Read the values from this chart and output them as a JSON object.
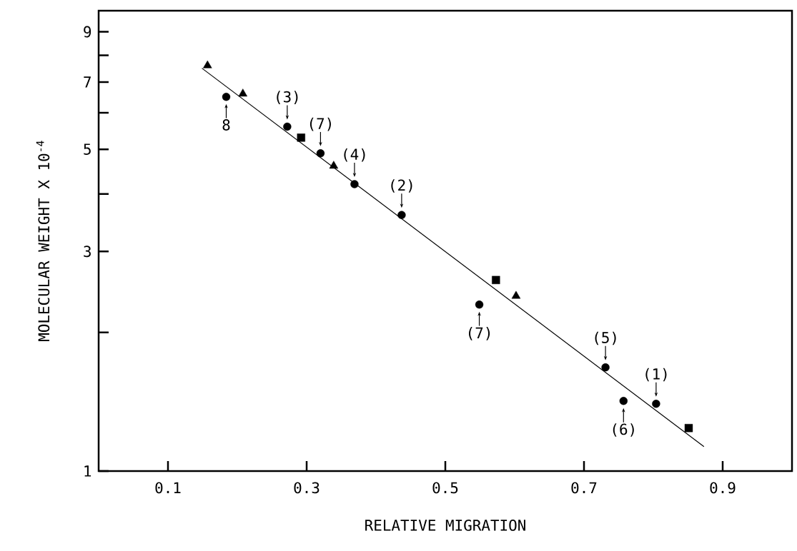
{
  "chart_data": {
    "type": "scatter",
    "xlabel": "RELATIVE MIGRATION",
    "ylabel": "MOLECULAR WEIGHT X 10$^{-4}$",
    "xlim": [
      0,
      1.0
    ],
    "ylim": [
      1,
      10
    ],
    "log": "y",
    "xticks": [
      0.1,
      0.3,
      0.5,
      0.7,
      0.9
    ],
    "yticks": [
      1,
      {
        "value": 2,
        "label": null
      },
      3,
      {
        "value": 4,
        "label": null
      },
      5,
      {
        "value": 6,
        "label": null
      },
      7,
      {
        "value": 8,
        "label": null
      },
      9
    ],
    "series": [
      {
        "marker": "circle",
        "color": "#000000",
        "x": [
          0.184,
          0.272,
          0.32,
          0.369,
          0.437,
          0.549,
          0.731,
          0.757,
          0.804
        ],
        "values": [
          6.5,
          5.6,
          4.9,
          4.2,
          3.6,
          2.3,
          1.68,
          1.42,
          1.4
        ]
      },
      {
        "marker": "triangle",
        "color": "#000000",
        "x": [
          0.157,
          0.208,
          0.339,
          0.602
        ],
        "values": [
          7.6,
          6.6,
          4.6,
          2.4
        ]
      },
      {
        "marker": "square",
        "color": "#000000",
        "x": [
          0.292,
          0.573,
          0.851
        ],
        "values": [
          5.3,
          2.6,
          1.24
        ]
      },
      {
        "type": "line",
        "marker": "none",
        "color": "#000000",
        "x": [
          0.149,
          0.873
        ],
        "values": [
          7.5,
          1.13
        ]
      }
    ],
    "annotations": [
      {
        "text": "8",
        "x": 0.184,
        "y": 6.5
      },
      {
        "text": "(3)",
        "x": 0.272,
        "y": 5.6
      },
      {
        "text": "(7)",
        "x": 0.32,
        "y": 4.9
      },
      {
        "text": "(4)",
        "x": 0.369,
        "y": 4.2
      },
      {
        "text": "(2)",
        "x": 0.437,
        "y": 3.6
      },
      {
        "text": "(7)",
        "x": 0.549,
        "y": 2.3
      },
      {
        "text": "(5)",
        "x": 0.731,
        "y": 1.68
      },
      {
        "text": "(1)",
        "x": 0.804,
        "y": 1.4
      },
      {
        "text": "(6)",
        "x": 0.757,
        "y": 1.42
      }
    ]
  }
}
